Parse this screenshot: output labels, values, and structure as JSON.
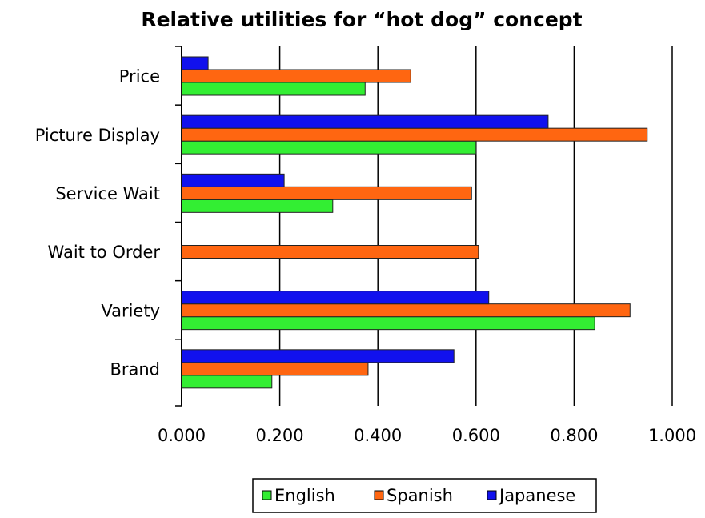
{
  "chart_data": {
    "type": "bar",
    "orientation": "horizontal",
    "title": "Relative utilities for “hot dog” concept",
    "categories": [
      "Price",
      "Picture Display",
      "Service Wait",
      "Wait to Order",
      "Variety",
      "Brand"
    ],
    "series": [
      {
        "name": "English",
        "color": "#33ee33",
        "values": [
          0.374,
          0.6,
          0.308,
          0,
          0.842,
          0.184
        ]
      },
      {
        "name": "Spanish",
        "color": "#ff6611",
        "values": [
          0.467,
          0.949,
          0.591,
          0.605,
          0.914,
          0.38
        ]
      },
      {
        "name": "Japanese",
        "color": "#1111ee",
        "values": [
          0.054,
          0.747,
          0.209,
          0,
          0.626,
          0.555
        ]
      }
    ],
    "xlim": [
      0,
      1
    ],
    "xticks": [
      {
        "value": 0,
        "label": "0.000"
      },
      {
        "value": 0.2,
        "label": "0.200"
      },
      {
        "value": 0.4,
        "label": "0.400"
      },
      {
        "value": 0.6,
        "label": "0.600"
      },
      {
        "value": 0.8,
        "label": "0.800"
      },
      {
        "value": 1,
        "label": "1.000"
      }
    ],
    "grid": true,
    "legend": "bottom"
  }
}
